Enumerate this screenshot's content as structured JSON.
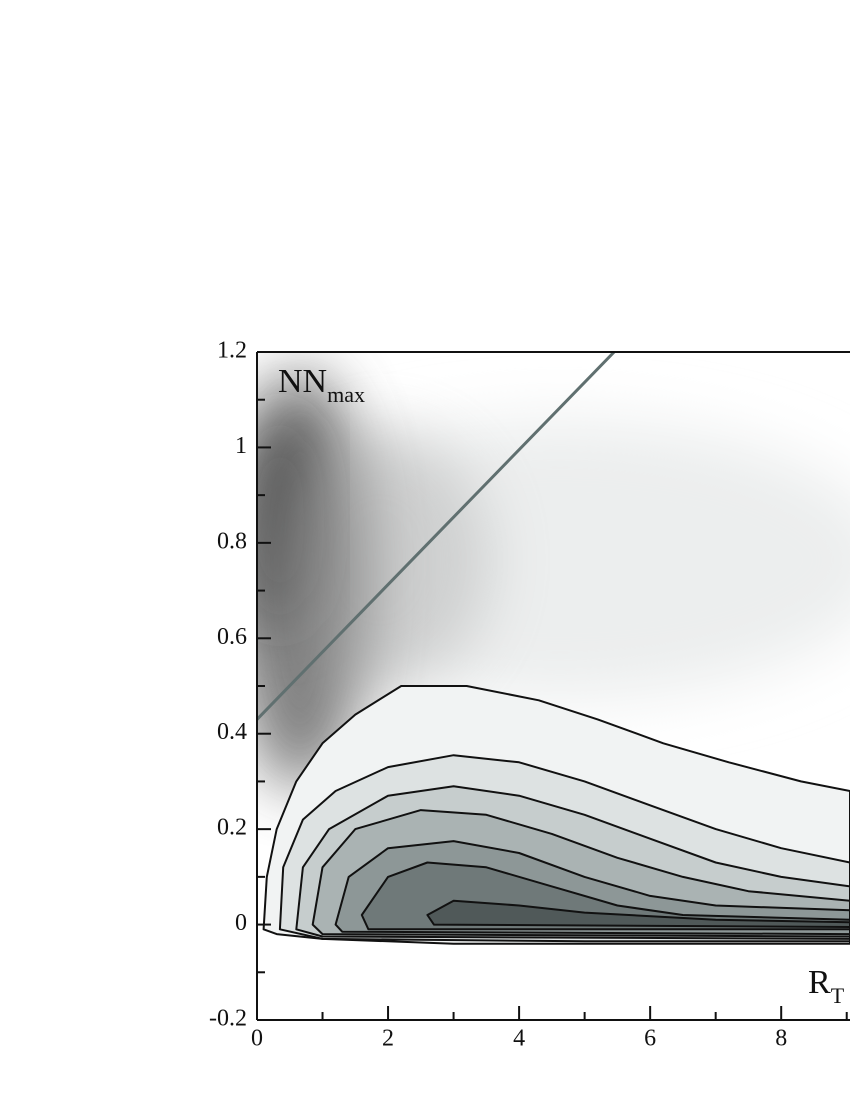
{
  "chart_data": {
    "type": "contour",
    "y_label": "NN",
    "y_label_sub": "max",
    "x_label": "R",
    "x_label_sub": "T",
    "xlim": [
      0,
      9.05
    ],
    "ylim": [
      -0.2,
      1.2
    ],
    "xticks": [
      0,
      2,
      4,
      6,
      8
    ],
    "xticks_minor": [
      1,
      3,
      5,
      7,
      9
    ],
    "yticks": [
      -0.2,
      0,
      0.2,
      0.4,
      0.6,
      0.8,
      1,
      1.2
    ],
    "yticks_minor": [
      -0.1,
      0.1,
      0.3,
      0.5,
      0.7,
      0.9,
      1.1
    ],
    "series": [
      {
        "color": "#f1f3f3",
        "x": [
          0.1,
          0.15,
          0.3,
          0.6,
          1.0,
          1.5,
          2.2,
          3.2,
          4.3,
          5.2,
          6.2,
          7.2,
          8.3,
          9.05,
          9.05,
          6,
          3,
          1,
          0.3
        ],
        "values": [
          -0.01,
          0.1,
          0.2,
          0.3,
          0.38,
          0.44,
          0.5,
          0.5,
          0.47,
          0.43,
          0.38,
          0.34,
          0.3,
          0.28,
          -0.04,
          -0.04,
          -0.04,
          -0.03,
          -0.02
        ]
      },
      {
        "color": "#dde2e2",
        "x": [
          0.35,
          0.4,
          0.7,
          1.2,
          2,
          3,
          4,
          5,
          6,
          7,
          8,
          9.05,
          9.05,
          5,
          1
        ],
        "values": [
          -0.01,
          0.12,
          0.22,
          0.28,
          0.33,
          0.355,
          0.34,
          0.3,
          0.25,
          0.2,
          0.16,
          0.13,
          -0.035,
          -0.035,
          -0.03
        ]
      },
      {
        "color": "#c6cdcd",
        "x": [
          0.6,
          0.7,
          1.1,
          2,
          3,
          4,
          5,
          6,
          7,
          8,
          9.05,
          9.05,
          1
        ],
        "values": [
          -0.01,
          0.12,
          0.2,
          0.27,
          0.29,
          0.27,
          0.23,
          0.18,
          0.13,
          0.1,
          0.08,
          -0.03,
          -0.025
        ]
      },
      {
        "color": "#aab3b3",
        "x": [
          0.85,
          1,
          1.5,
          2.5,
          3.5,
          4.5,
          5.5,
          6.5,
          7.5,
          9.05,
          9.05,
          1
        ],
        "values": [
          0,
          0.12,
          0.2,
          0.24,
          0.23,
          0.19,
          0.14,
          0.1,
          0.07,
          0.05,
          -0.025,
          -0.02
        ]
      },
      {
        "color": "#8d9797",
        "x": [
          1.2,
          1.4,
          2,
          3,
          4,
          5,
          6,
          7,
          9.05,
          9.05,
          1.3
        ],
        "values": [
          0,
          0.1,
          0.16,
          0.175,
          0.15,
          0.1,
          0.06,
          0.04,
          0.03,
          -0.02,
          -0.015
        ]
      },
      {
        "color": "#6f7979",
        "x": [
          1.6,
          2,
          2.6,
          3.5,
          4.5,
          5.5,
          6.5,
          9.05,
          9.05,
          1.7
        ],
        "values": [
          0.02,
          0.1,
          0.13,
          0.12,
          0.08,
          0.04,
          0.02,
          0.01,
          -0.01,
          -0.01
        ]
      },
      {
        "color": "#505959",
        "x": [
          2.6,
          3,
          4,
          5,
          7,
          9.05,
          9.05,
          2.7
        ],
        "values": [
          0.02,
          0.05,
          0.04,
          0.025,
          0.01,
          0.005,
          -0.005,
          0
        ]
      }
    ],
    "lines": [
      {
        "color": "#607070",
        "x": [
          0,
          5.45
        ],
        "values": [
          0.43,
          1.2
        ]
      }
    ]
  }
}
